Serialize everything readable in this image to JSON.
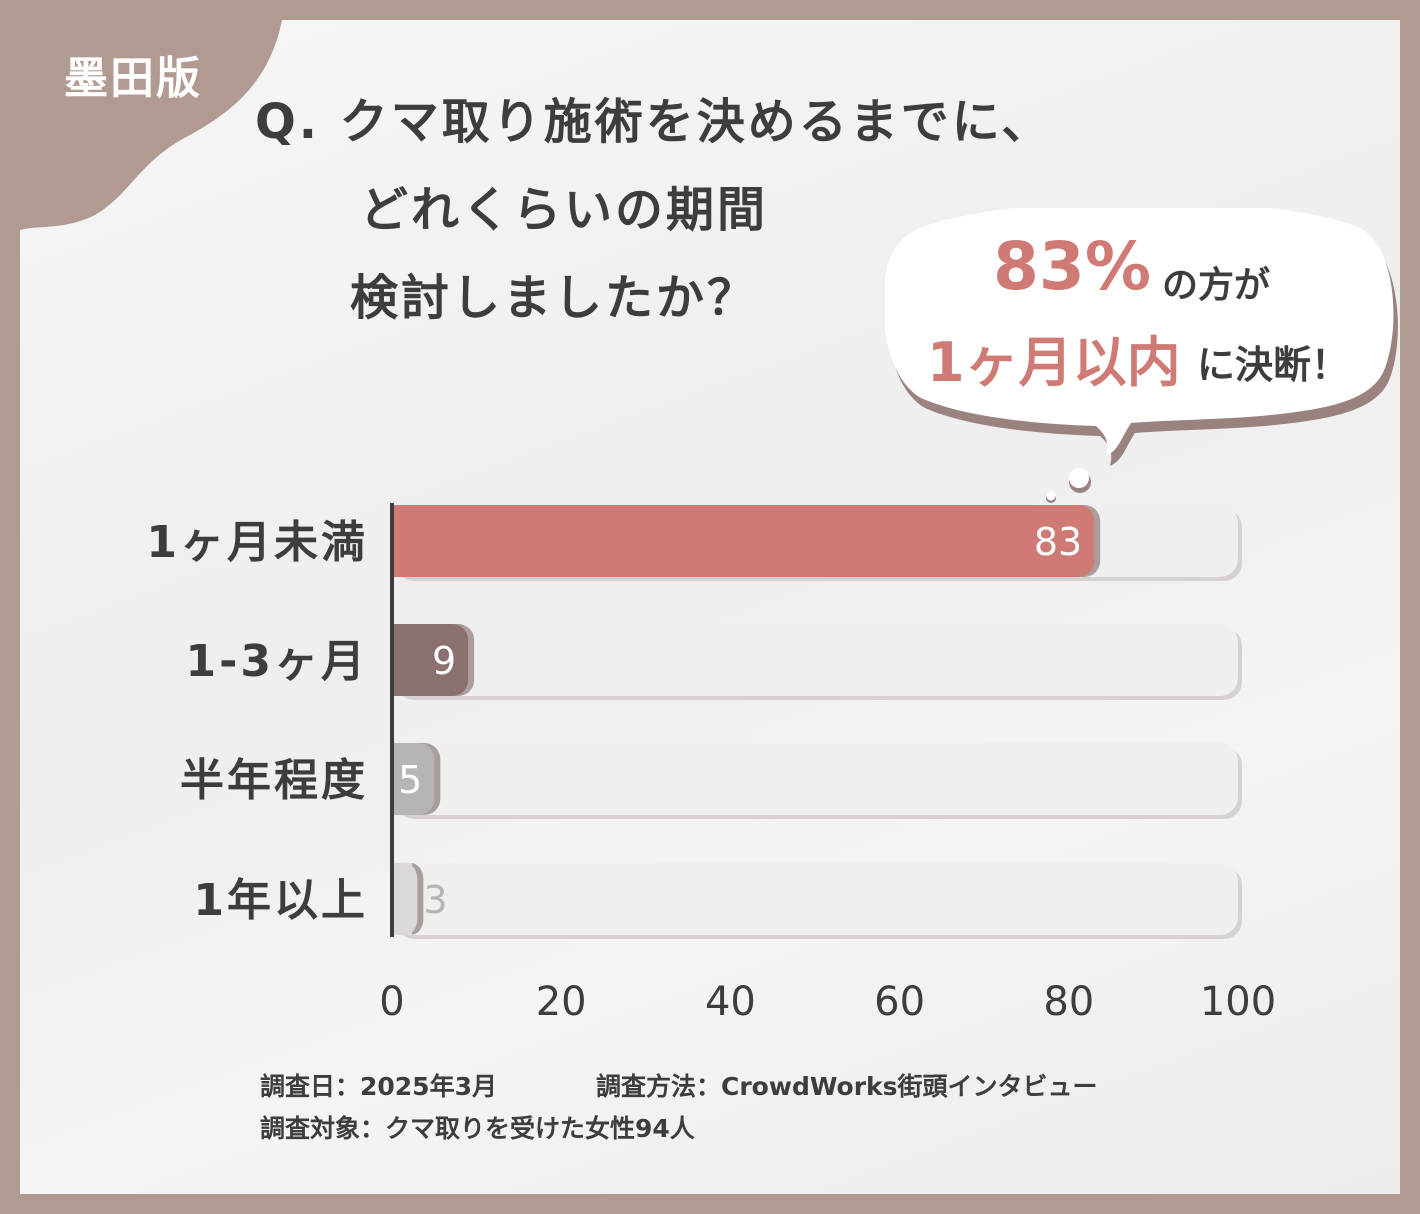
{
  "badge": "墨田版",
  "title": {
    "line1": "Q. クマ取り施術を決めるまでに、",
    "line2": "どれくらいの期間",
    "line3": "検討しましたか？"
  },
  "callout": {
    "percent": "83%",
    "text1": "の方が",
    "highlight": "1ヶ月以内",
    "text2": "に決断！"
  },
  "chart_data": {
    "type": "bar",
    "orientation": "horizontal",
    "categories": [
      "1ヶ月未満",
      "1-3ヶ月",
      "半年程度",
      "1年以上"
    ],
    "values": [
      83,
      9,
      5,
      3
    ],
    "data_labels": [
      "83",
      "9",
      "5",
      "3"
    ],
    "xlim": [
      0,
      100
    ],
    "xticks": [
      "0",
      "20",
      "40",
      "60",
      "80",
      "100"
    ],
    "colors": [
      "#cf7a74",
      "#8a7170",
      "#b8b4b4",
      "#dcd8d8"
    ],
    "track_color": "#f1eeee"
  },
  "footer": {
    "date": "調査日：2025年3月",
    "method": "調査方法：CrowdWorks街頭インタビュー",
    "target": "調査対象：クマ取りを受けた女性94人"
  }
}
